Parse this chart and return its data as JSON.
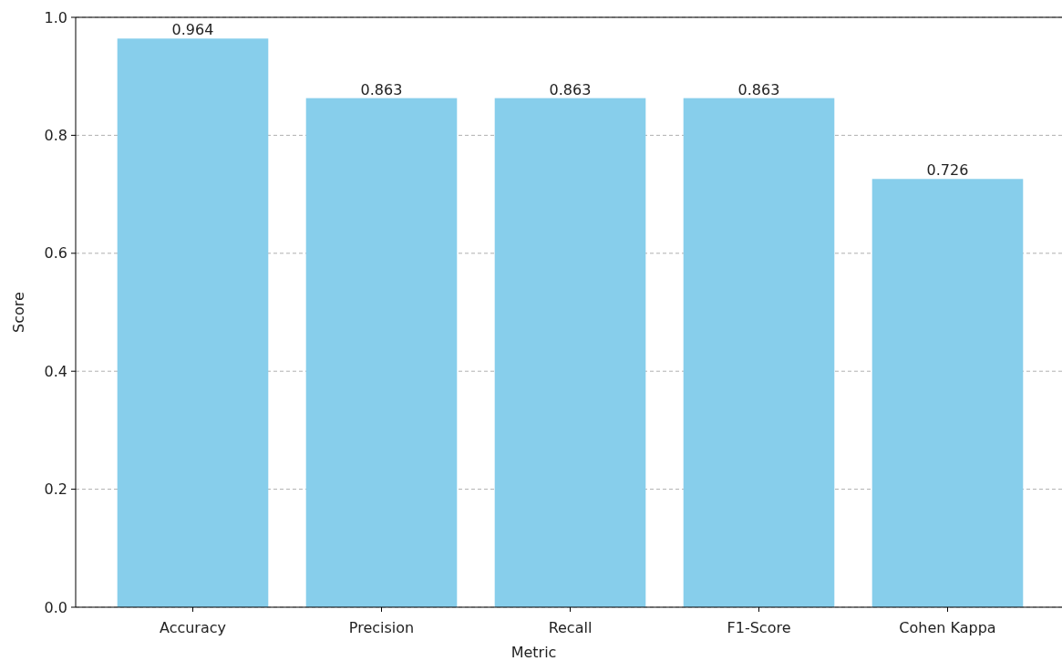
{
  "chart_data": {
    "type": "bar",
    "xlabel": "Metric",
    "ylabel": "Score",
    "categories": [
      "Accuracy",
      "Precision",
      "Recall",
      "F1-Score",
      "Cohen Kappa"
    ],
    "values": [
      0.964,
      0.863,
      0.863,
      0.863,
      0.726
    ],
    "color": "#87ceeb",
    "data_labels": true,
    "ylim": [
      0,
      1
    ],
    "yticks": [
      {
        "value": 0,
        "label": "0.0"
      },
      {
        "value": 0.2,
        "label": "0.2"
      },
      {
        "value": 0.4,
        "label": "0.4"
      },
      {
        "value": 0.6,
        "label": "0.6"
      },
      {
        "value": 0.8,
        "label": "0.8"
      },
      {
        "value": 1,
        "label": "1.0"
      }
    ],
    "grid": "y"
  }
}
